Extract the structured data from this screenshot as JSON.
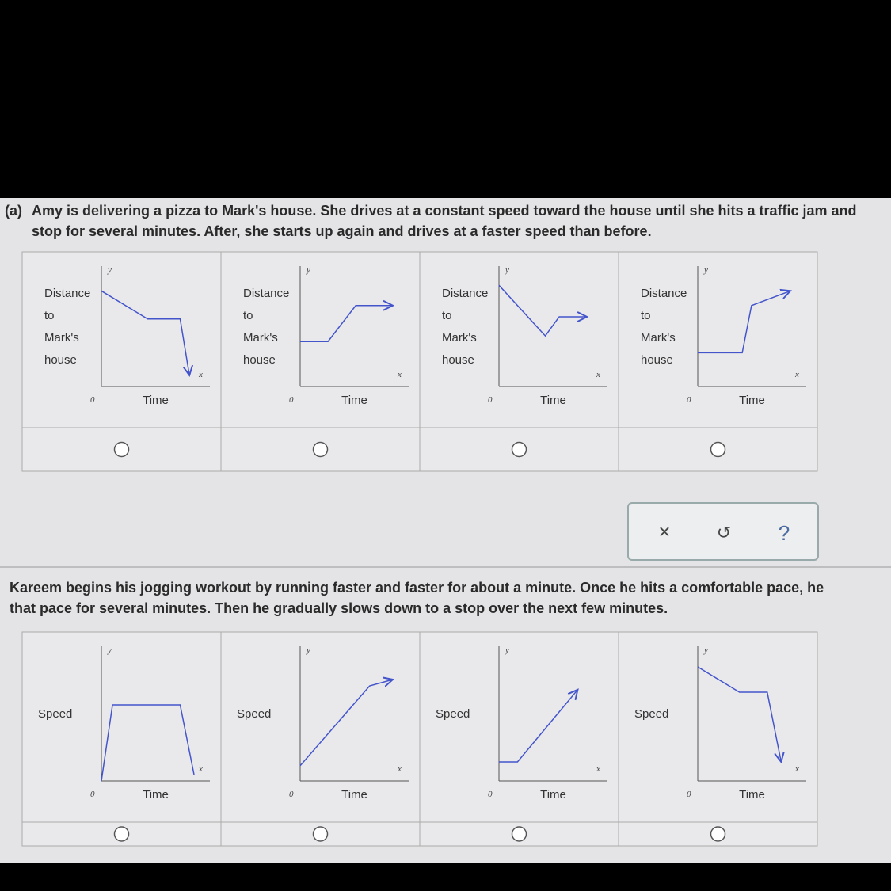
{
  "question_a": {
    "label": "(a)",
    "lines": [
      "Amy is delivering a pizza to Mark's house. She drives at a constant speed toward the house until she hits a traffic jam and",
      "stop for several minutes. After, she starts up again and drives at a faster speed than before."
    ]
  },
  "options_a": [
    {
      "y_label": [
        "Distance",
        "to",
        "Mark's",
        "house"
      ],
      "y_symbol": "y",
      "x_symbol": "x",
      "origin": "0",
      "x_label": "Time"
    },
    {
      "y_label": [
        "Distance",
        "to",
        "Mark's",
        "house"
      ],
      "y_symbol": "y",
      "x_symbol": "x",
      "origin": "0",
      "x_label": "Time"
    },
    {
      "y_label": [
        "Distance",
        "to",
        "Mark's",
        "house"
      ],
      "y_symbol": "y",
      "x_symbol": "x",
      "origin": "0",
      "x_label": "Time"
    },
    {
      "y_label": [
        "Distance",
        "to",
        "Mark's",
        "house"
      ],
      "y_symbol": "y",
      "x_symbol": "x",
      "origin": "0",
      "x_label": "Time"
    }
  ],
  "toolbar": {
    "close": "×",
    "undo": "↺",
    "help": "?"
  },
  "question_b": {
    "lines": [
      "Kareem begins his jogging workout by running faster and faster for about a minute. Once he hits a comfortable pace, he",
      "that pace for several minutes. Then he gradually slows down to a stop over the next few minutes."
    ]
  },
  "options_b": [
    {
      "y_label": [
        "Speed"
      ],
      "y_symbol": "y",
      "x_symbol": "x",
      "origin": "0",
      "x_label": "Time"
    },
    {
      "y_label": [
        "Speed"
      ],
      "y_symbol": "y",
      "x_symbol": "x",
      "origin": "0",
      "x_label": "Time"
    },
    {
      "y_label": [
        "Speed"
      ],
      "y_symbol": "y",
      "x_symbol": "x",
      "origin": "0",
      "x_label": "Time"
    },
    {
      "y_label": [
        "Speed"
      ],
      "y_symbol": "y",
      "x_symbol": "x",
      "origin": "0",
      "x_label": "Time"
    }
  ]
}
